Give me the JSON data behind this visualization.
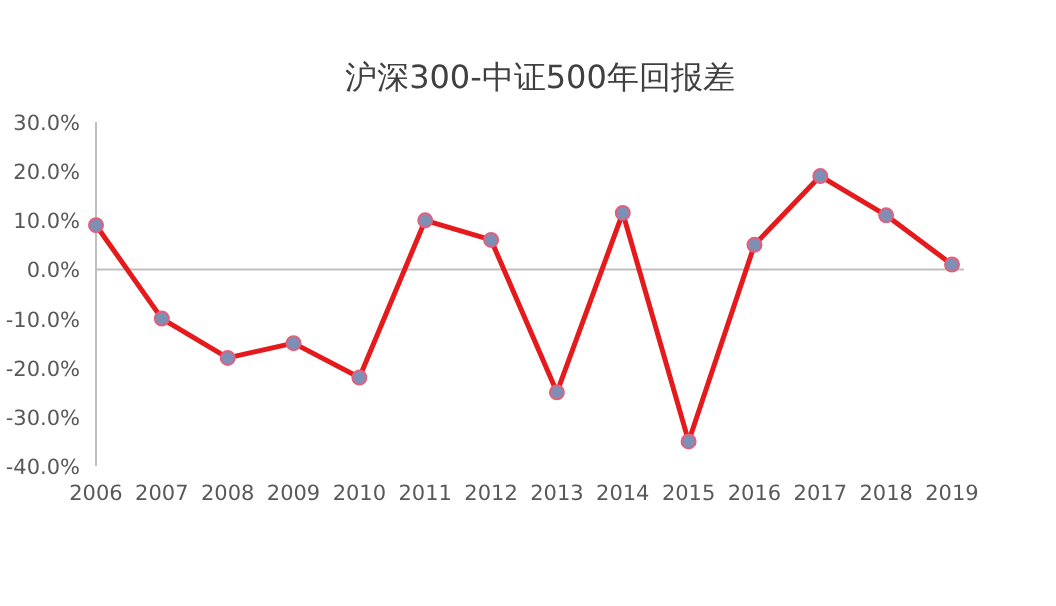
{
  "chart_data": {
    "type": "line",
    "title": "沪深300-中证500年回报差",
    "categories": [
      "2006",
      "2007",
      "2008",
      "2009",
      "2010",
      "2011",
      "2012",
      "2013",
      "2014",
      "2015",
      "2016",
      "2017",
      "2018",
      "2019"
    ],
    "series": [
      {
        "color": "#e41a1c",
        "values": [
          9,
          -10,
          -18,
          -15,
          -22,
          10,
          6,
          -25,
          11.5,
          -35,
          5,
          19,
          11,
          1
        ]
      }
    ],
    "ylim": [
      -40,
      30
    ],
    "yticks": [
      {
        "value": -40,
        "label": "-40.0%"
      },
      {
        "value": -30,
        "label": "-30.0%"
      },
      {
        "value": -20,
        "label": "-20.0%"
      },
      {
        "value": -10,
        "label": "-10.0%"
      },
      {
        "value": 0,
        "label": "0.0%"
      },
      {
        "value": 10,
        "label": "10.0%"
      },
      {
        "value": 20,
        "label": "20.0%"
      },
      {
        "value": 30,
        "label": "30.0%"
      }
    ],
    "marker": "circle",
    "line_style": "solid"
  }
}
